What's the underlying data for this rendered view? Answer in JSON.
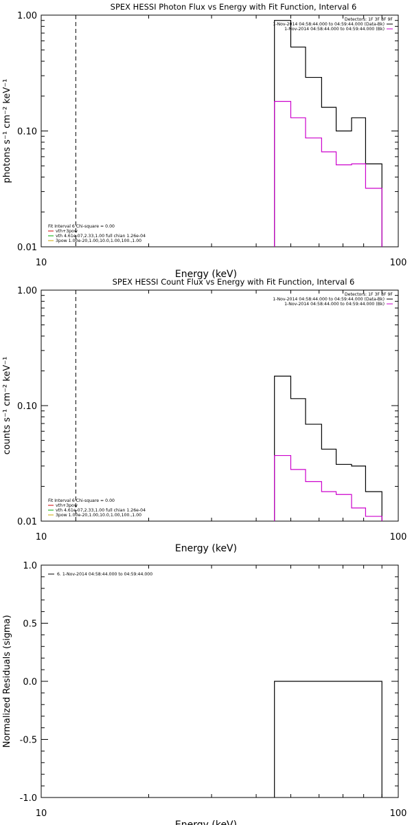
{
  "chart_data": [
    {
      "type": "line",
      "title": "SPEX HESSI Photon Flux vs Energy with Fit Function, Interval 6",
      "xlabel": "Energy (keV)",
      "ylabel": "photons s⁻¹ cm⁻² keV⁻¹",
      "xscale": "log",
      "yscale": "log",
      "xlim": [
        10,
        100
      ],
      "ylim": [
        0.01,
        1.0
      ],
      "xticks": [
        "10",
        "100"
      ],
      "yticks": [
        "0.01",
        "0.10",
        "1.00"
      ],
      "dashed_line_x": 12.5,
      "legend_top_right": [
        {
          "text": "Detectors: 1F 3F 8F 9F",
          "color": "#000000"
        },
        {
          "text": "1-Nov-2014 04:58:44.000 to 04:59:44.000 (Data-Bk)",
          "color": "#000000"
        },
        {
          "text": "1-Nov-2014 04:58:44.000 to 04:59:44.000 (Bk)",
          "color": "#cc00cc"
        }
      ],
      "legend_bottom_left": [
        {
          "text": "Fit Interval 6   Chi-square = 0.00",
          "color": "#000000"
        },
        {
          "text": "vth+3pow",
          "color": "#cc0000"
        },
        {
          "text": "vth 4.61e-07,2.33,1.00  full chian 1.26e-04",
          "color": "#00aa00"
        },
        {
          "text": "3pow 1.00e-20,1.00,10.0,1.00,100.,1.00",
          "color": "#ccaa00"
        }
      ],
      "series": [
        {
          "name": "Data-Bk",
          "color": "#000000",
          "edges": [
            45,
            50,
            55,
            61,
            67,
            74,
            81,
            90
          ],
          "values": [
            0.9,
            0.53,
            0.29,
            0.16,
            0.1,
            0.13,
            0.052
          ]
        },
        {
          "name": "Bk",
          "color": "#cc00cc",
          "edges": [
            45,
            50,
            55,
            61,
            67,
            74,
            81,
            90
          ],
          "values": [
            0.18,
            0.13,
            0.087,
            0.066,
            0.051,
            0.052,
            0.032
          ]
        }
      ]
    },
    {
      "type": "line",
      "title": "SPEX HESSI Count Flux vs Energy with Fit Function, Interval 6",
      "xlabel": "Energy (keV)",
      "ylabel": "counts s⁻¹ cm⁻² keV⁻¹",
      "xscale": "log",
      "yscale": "log",
      "xlim": [
        10,
        100
      ],
      "ylim": [
        0.01,
        1.0
      ],
      "xticks": [
        "10",
        "100"
      ],
      "yticks": [
        "0.01",
        "0.10",
        "1.00"
      ],
      "dashed_line_x": 12.5,
      "legend_top_right": [
        {
          "text": "Detectors: 1F 3F 8F 9F",
          "color": "#000000"
        },
        {
          "text": "1-Nov-2014 04:58:44.000 to 04:59:44.000 (Data-Bk)",
          "color": "#000000"
        },
        {
          "text": "1-Nov-2014 04:58:44.000 to 04:59:44.000 (Bk)",
          "color": "#cc00cc"
        }
      ],
      "legend_bottom_left": [
        {
          "text": "Fit Interval 6   Chi-square = 0.00",
          "color": "#000000"
        },
        {
          "text": "vth+3pow",
          "color": "#cc0000"
        },
        {
          "text": "vth 4.61e-07,2.33,1.00  full chian 1.26e-04",
          "color": "#00aa00"
        },
        {
          "text": "3pow 1.00e-20,1.00,10.0,1.00,100.,1.00",
          "color": "#ccaa00"
        }
      ],
      "series": [
        {
          "name": "Data-Bk",
          "color": "#000000",
          "edges": [
            45,
            50,
            55,
            61,
            67,
            74,
            81,
            90
          ],
          "values": [
            0.18,
            0.115,
            0.069,
            0.042,
            0.031,
            0.03,
            0.018
          ]
        },
        {
          "name": "Bk",
          "color": "#cc00cc",
          "edges": [
            45,
            50,
            55,
            61,
            67,
            74,
            81,
            90
          ],
          "values": [
            0.037,
            0.028,
            0.022,
            0.018,
            0.017,
            0.013,
            0.011
          ]
        }
      ]
    },
    {
      "type": "line",
      "title": "",
      "xlabel": "Energy (keV)",
      "ylabel": "Normalized Residuals (sigma)",
      "xscale": "log",
      "yscale": "linear",
      "xlim": [
        10,
        100
      ],
      "ylim": [
        -1.0,
        1.0
      ],
      "xticks": [
        "10",
        "100"
      ],
      "yticks": [
        "-1.0",
        "-0.5",
        "0.0",
        "0.5",
        "1.0"
      ],
      "legend_top_left": [
        {
          "text": "6. 1-Nov-2014 04:58:44.000 to 04:59:44.000",
          "color": "#000000"
        }
      ],
      "series": [
        {
          "name": "6",
          "color": "#000000",
          "edges": [
            45,
            90
          ],
          "values": [
            0.0
          ]
        }
      ]
    }
  ]
}
